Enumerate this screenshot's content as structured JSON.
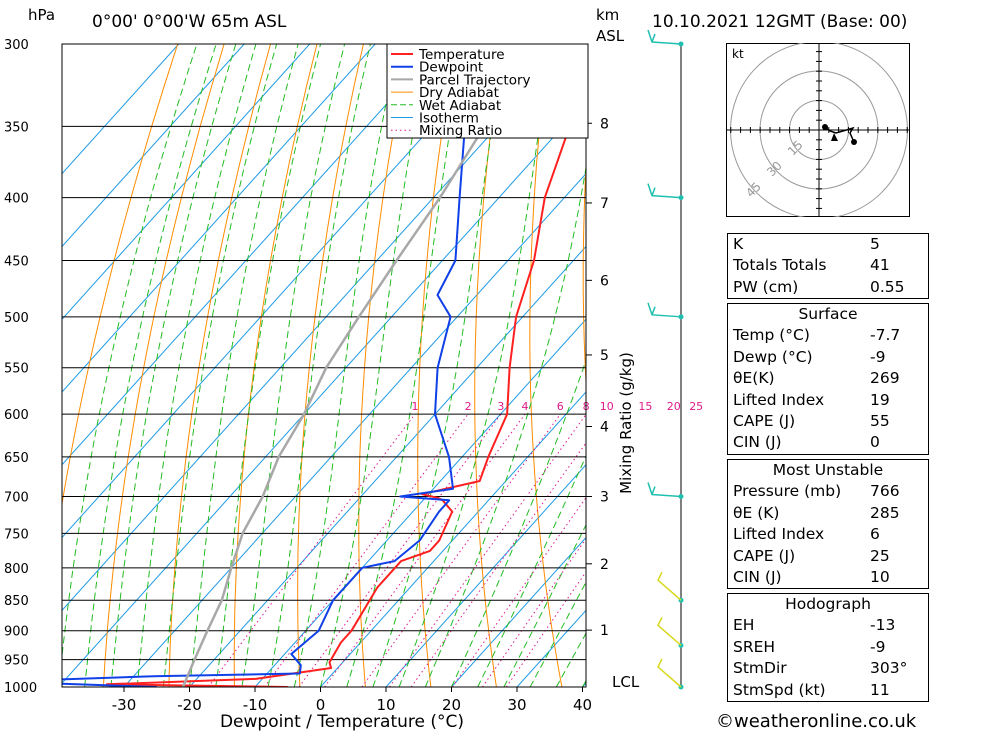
{
  "header": {
    "location": "0°00' 0°00'W 65m ASL",
    "datetime": "10.10.2021 12GMT (Base: 00)",
    "pressure_unit": "hPa",
    "height_unit": "km",
    "height_unit2": "ASL"
  },
  "axes": {
    "xlabel": "Dewpoint / Temperature (°C)",
    "mixing_label": "Mixing Ratio (g/kg)",
    "lcl_label": "LCL"
  },
  "legend": [
    "Temperature",
    "Dewpoint",
    "Parcel Trajectory",
    "Dry Adiabat",
    "Wet Adiabat",
    "Isotherm",
    "Mixing Ratio"
  ],
  "colors": {
    "temperature": "#ff2020",
    "dewpoint": "#1040e8",
    "parcel": "#a8a8a8",
    "dry_adiabat": "#ff8c00",
    "wet_adiabat": "#22bb22",
    "isotherm": "#1e9be6",
    "mixing_ratio": "#e0198c",
    "wind_barb": "#20c0b0",
    "wind_barb_low": "#d8d820"
  },
  "indices": {
    "k_label": "K",
    "k": "5",
    "tt_label": "Totals Totals",
    "tt": "41",
    "pw_label": "PW (cm)",
    "pw": "0.55"
  },
  "surface": {
    "title": "Surface",
    "temp_label": "Temp (°C)",
    "temp": "-7.7",
    "dewp_label": "Dewp (°C)",
    "dewp": "-9",
    "thetae_label": "θE(K)",
    "thetae": "269",
    "li_label": "Lifted Index",
    "li": "19",
    "cape_label": "CAPE (J)",
    "cape": "55",
    "cin_label": "CIN (J)",
    "cin": "0"
  },
  "most_unstable": {
    "title": "Most Unstable",
    "pressure_label": "Pressure (mb)",
    "pressure": "766",
    "thetae_label": "θE (K)",
    "thetae": "285",
    "li_label": "Lifted Index",
    "li": "6",
    "cape_label": "CAPE (J)",
    "cape": "25",
    "cin_label": "CIN (J)",
    "cin": "10"
  },
  "hodograph": {
    "title": "Hodograph",
    "eh_label": "EH",
    "eh": "-13",
    "sreh_label": "SREH",
    "sreh": "-9",
    "stmdir_label": "StmDir",
    "stmdir": "303°",
    "stmspd_label": "StmSpd (kt)",
    "stmspd": "11",
    "unit": "kt",
    "rings": [
      "15",
      "30",
      "45"
    ]
  },
  "footer": "©weatheronline.co.uk",
  "chart_data": {
    "type": "line",
    "pressure_levels": [
      300,
      350,
      400,
      450,
      500,
      550,
      600,
      650,
      700,
      750,
      800,
      850,
      900,
      950,
      1000
    ],
    "x_ticks": [
      -30,
      -20,
      -10,
      0,
      10,
      20,
      30,
      40
    ],
    "xlim": [
      -40,
      40
    ],
    "ylim": [
      1000,
      300
    ],
    "height_km_ticks": [
      1,
      2,
      3,
      4,
      5,
      6,
      7,
      8
    ],
    "mixing_ratio_ticks": [
      "1",
      "2",
      "3",
      "4",
      "6",
      "8",
      "10",
      "15",
      "20",
      "25"
    ],
    "series": [
      {
        "name": "Temperature",
        "points": [
          [
            300,
            -43
          ],
          [
            350,
            -39
          ],
          [
            400,
            -33
          ],
          [
            450,
            -26
          ],
          [
            500,
            -21
          ],
          [
            550,
            -15
          ],
          [
            600,
            -9
          ],
          [
            650,
            -6
          ],
          [
            680,
            -4
          ],
          [
            697,
            -11
          ],
          [
            702,
            -8
          ],
          [
            705,
            -7
          ],
          [
            720,
            -4
          ],
          [
            760,
            -2
          ],
          [
            775,
            -2
          ],
          [
            790,
            -5
          ],
          [
            830,
            -5
          ],
          [
            900,
            -3
          ],
          [
            920,
            -3
          ],
          [
            955,
            -2
          ],
          [
            965,
            -1
          ],
          [
            985,
            -11
          ],
          [
            995,
            -33
          ],
          [
            1000,
            -5
          ]
        ]
      },
      {
        "name": "Dewpoint",
        "points": [
          [
            300,
            -65
          ],
          [
            350,
            -55
          ],
          [
            400,
            -46
          ],
          [
            450,
            -38
          ],
          [
            480,
            -36
          ],
          [
            500,
            -31
          ],
          [
            550,
            -26
          ],
          [
            600,
            -20
          ],
          [
            650,
            -12
          ],
          [
            690,
            -7
          ],
          [
            700,
            -14
          ],
          [
            705,
            -6
          ],
          [
            720,
            -6
          ],
          [
            760,
            -5
          ],
          [
            790,
            -6
          ],
          [
            800,
            -10
          ],
          [
            850,
            -10
          ],
          [
            900,
            -8
          ],
          [
            940,
            -9
          ],
          [
            960,
            -6
          ],
          [
            975,
            -5
          ],
          [
            980,
            -27
          ],
          [
            990,
            -50
          ],
          [
            1000,
            -25
          ]
        ]
      },
      {
        "name": "Parcel Trajectory",
        "points": [
          [
            1000,
            -21
          ],
          [
            950,
            -23
          ],
          [
            900,
            -25
          ],
          [
            850,
            -27
          ],
          [
            800,
            -30
          ],
          [
            750,
            -33
          ],
          [
            700,
            -35
          ],
          [
            650,
            -38
          ],
          [
            600,
            -40
          ],
          [
            550,
            -43
          ],
          [
            500,
            -45
          ],
          [
            450,
            -47
          ],
          [
            400,
            -49
          ],
          [
            350,
            -52
          ],
          [
            300,
            -55
          ]
        ]
      }
    ],
    "wind_barbs_pressure": [
      300,
      400,
      500,
      700,
      850,
      925,
      1000
    ]
  }
}
